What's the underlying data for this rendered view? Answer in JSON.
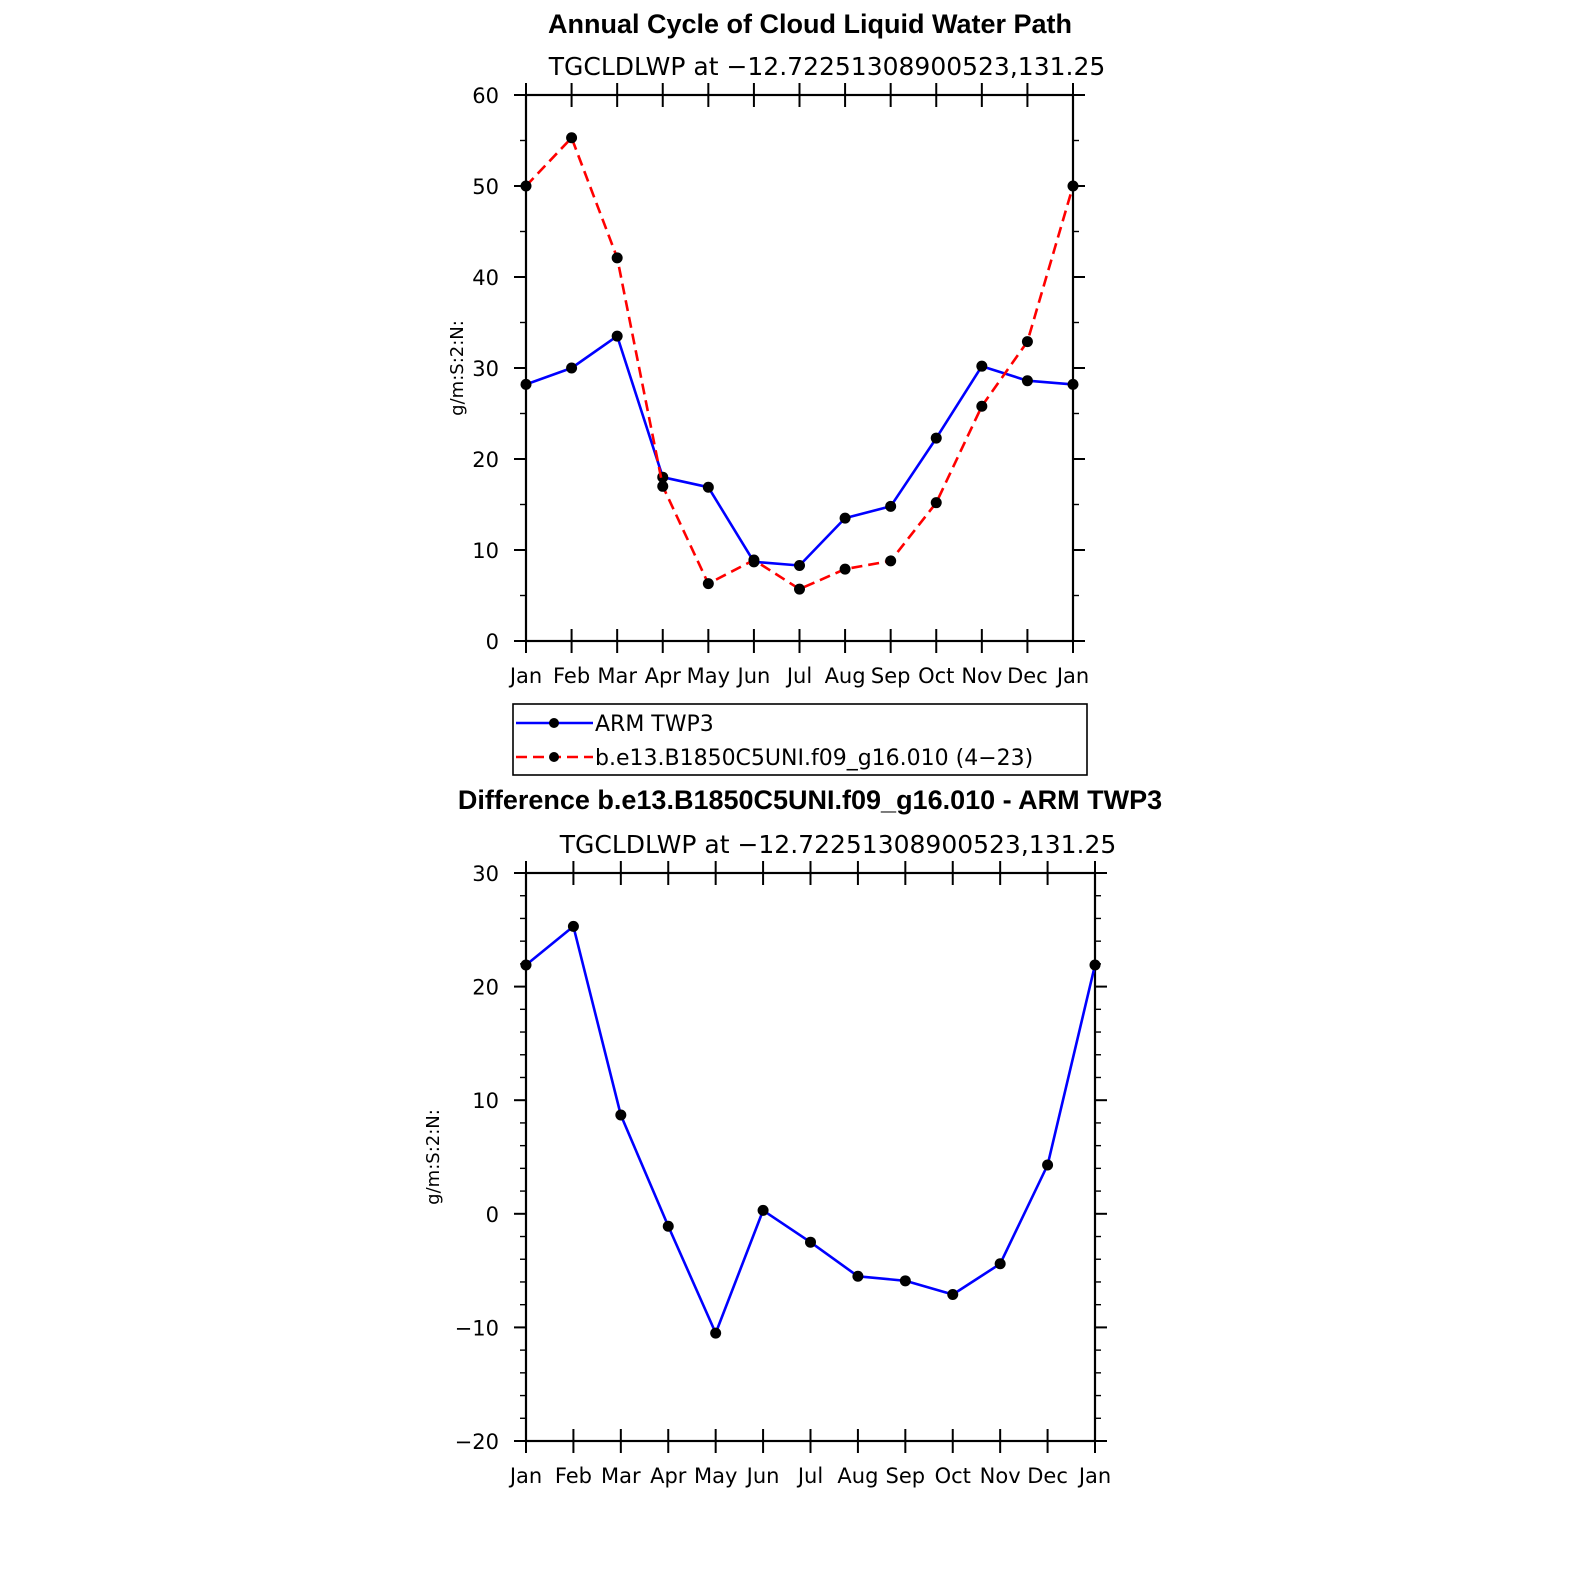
{
  "chart_data": [
    {
      "type": "line",
      "title": "Annual Cycle of Cloud Liquid Water Path",
      "subtitle": "TGCLDLWP at −12.72251308900523,131.25",
      "xlabel": "",
      "ylabel": "g/m:S:2:N:",
      "categories": [
        "Jan",
        "Feb",
        "Mar",
        "Apr",
        "May",
        "Jun",
        "Jul",
        "Aug",
        "Sep",
        "Oct",
        "Nov",
        "Dec",
        "Jan"
      ],
      "ylim": [
        0,
        60
      ],
      "yticks": [
        0,
        10,
        20,
        30,
        40,
        50,
        60
      ],
      "ytick_labels": [
        "0",
        "10",
        "20",
        "30",
        "40",
        "50",
        "60"
      ],
      "series": [
        {
          "name": "ARM TWP3",
          "color": "#0000ff",
          "style": "solid",
          "values": [
            28.2,
            30.0,
            33.5,
            18.0,
            16.9,
            8.7,
            8.3,
            13.5,
            14.8,
            22.3,
            30.2,
            28.6,
            28.2
          ]
        },
        {
          "name": "b.e13.B1850C5UNI.f09_g16.010 (4−23)",
          "color": "#ff0000",
          "style": "dashed",
          "values": [
            50.0,
            55.3,
            42.1,
            17.0,
            6.3,
            8.9,
            5.7,
            7.9,
            8.8,
            15.2,
            25.8,
            32.9,
            50.0
          ]
        }
      ],
      "legend": "below"
    },
    {
      "type": "line",
      "title": "Difference b.e13.B1850C5UNI.f09_g16.010 - ARM TWP3",
      "subtitle": "TGCLDLWP at −12.72251308900523,131.25",
      "xlabel": "",
      "ylabel": "g/m:S:2:N:",
      "categories": [
        "Jan",
        "Feb",
        "Mar",
        "Apr",
        "May",
        "Jun",
        "Jul",
        "Aug",
        "Sep",
        "Oct",
        "Nov",
        "Dec",
        "Jan"
      ],
      "ylim": [
        -20,
        30
      ],
      "yticks": [
        -20,
        -10,
        0,
        10,
        20,
        30
      ],
      "ytick_labels": [
        "−20",
        "−10",
        "0",
        "10",
        "20",
        "30"
      ],
      "series": [
        {
          "name": "Difference",
          "color": "#0000ff",
          "style": "solid",
          "values": [
            21.9,
            25.3,
            8.7,
            -1.1,
            -10.5,
            0.3,
            -2.5,
            -5.5,
            -5.9,
            -7.1,
            -4.4,
            4.3,
            21.9
          ]
        }
      ]
    }
  ]
}
